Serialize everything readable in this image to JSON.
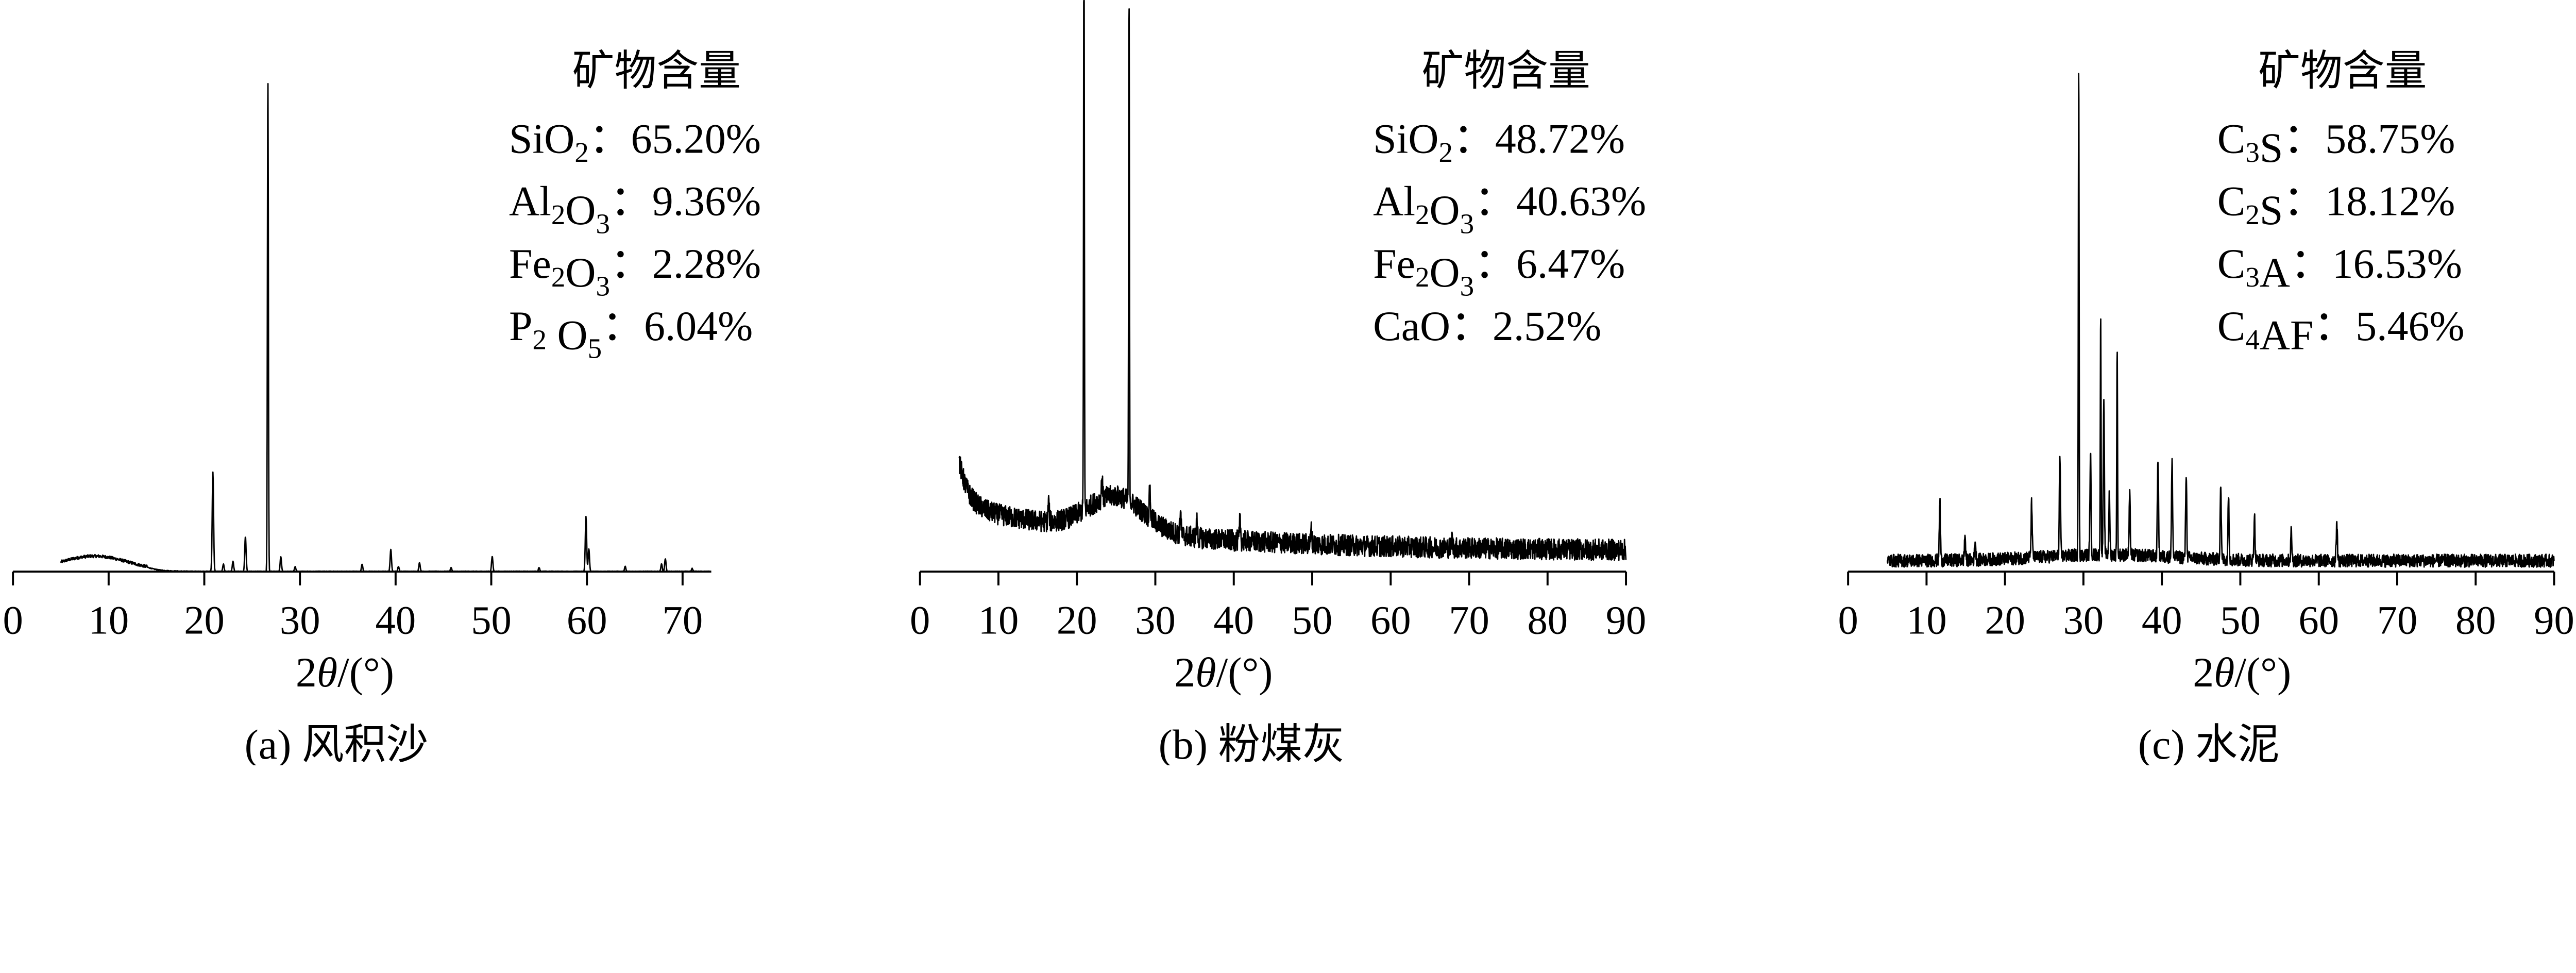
{
  "chart_data": [
    {
      "type": "line",
      "xlabel": "2θ/(°)",
      "caption": "(a)  风积沙",
      "xlim": [
        0,
        73
      ],
      "xticks": [
        0,
        10,
        20,
        30,
        40,
        50,
        60,
        70
      ],
      "x_range": [
        5,
        73
      ],
      "y_axis_shown": false,
      "grid": false,
      "annotation_title": "矿物含量",
      "annotations": [
        {
          "formula": "SiO2",
          "value": "65.20%"
        },
        {
          "formula": "Al2O3",
          "value": "9.36%"
        },
        {
          "formula": "Fe2O3",
          "value": "2.28%"
        },
        {
          "formula": "P2 O5",
          "value": "6.04%"
        }
      ],
      "peaks_relative_intensity": [
        [
          20.9,
          20
        ],
        [
          22.0,
          1.5
        ],
        [
          23.0,
          2
        ],
        [
          24.3,
          7
        ],
        [
          26.65,
          100
        ],
        [
          28.0,
          3
        ],
        [
          29.5,
          1
        ],
        [
          36.5,
          1.5
        ],
        [
          39.5,
          4.5
        ],
        [
          40.3,
          1
        ],
        [
          42.5,
          1.8
        ],
        [
          45.8,
          0.8
        ],
        [
          50.1,
          3
        ],
        [
          55,
          0.8
        ],
        [
          59.9,
          11
        ],
        [
          60.2,
          4.5
        ],
        [
          64,
          1
        ],
        [
          67.8,
          1.5
        ],
        [
          68.2,
          2.5
        ],
        [
          71,
          0.6
        ]
      ],
      "background": "amorphous hump 5–14°, ~3%"
    },
    {
      "type": "line",
      "xlabel": "2θ/(°)",
      "caption": "(b)  粉煤灰",
      "xlim": [
        0,
        90
      ],
      "xticks": [
        0,
        10,
        20,
        30,
        40,
        50,
        60,
        70,
        80,
        90
      ],
      "x_range": [
        5,
        90
      ],
      "y_axis_shown": false,
      "grid": false,
      "annotation_title": "矿物含量",
      "annotations": [
        {
          "formula": "SiO2",
          "value": "48.72%"
        },
        {
          "formula": "Al2O3",
          "value": "40.63%"
        },
        {
          "formula": "Fe2O3",
          "value": "6.47%"
        },
        {
          "formula": "CaO",
          "value": "2.52%"
        }
      ],
      "peaks_relative_intensity": [
        [
          20.9,
          120
        ],
        [
          26.65,
          100
        ],
        [
          16.4,
          4
        ],
        [
          23.2,
          4
        ],
        [
          29.3,
          6
        ],
        [
          33.2,
          5
        ],
        [
          35.3,
          3
        ],
        [
          40.8,
          4
        ],
        [
          49.9,
          3
        ],
        [
          67.8,
          2
        ]
      ],
      "background": "noisy, high at 5°, hump around 20–30°, decaying to 90°"
    },
    {
      "type": "line",
      "xlabel": "2θ/(°)",
      "caption": "(c)  水泥",
      "xlim": [
        0,
        90
      ],
      "xticks": [
        0,
        10,
        20,
        30,
        40,
        50,
        60,
        70,
        80,
        90
      ],
      "x_range": [
        5,
        90
      ],
      "y_axis_shown": false,
      "grid": false,
      "annotation_title": "矿物含量",
      "annotations": [
        {
          "formula": "C3S",
          "value": "58.75%"
        },
        {
          "formula": "C2S",
          "value": "18.12%"
        },
        {
          "formula": "C3A",
          "value": "16.53%"
        },
        {
          "formula": "C4AF",
          "value": "5.46%"
        }
      ],
      "peaks_relative_intensity": [
        [
          11.7,
          12
        ],
        [
          14.9,
          5
        ],
        [
          16.2,
          4
        ],
        [
          23.4,
          11
        ],
        [
          27.0,
          20
        ],
        [
          29.4,
          100
        ],
        [
          30.9,
          20
        ],
        [
          32.2,
          48
        ],
        [
          32.6,
          30
        ],
        [
          33.3,
          12
        ],
        [
          34.3,
          41
        ],
        [
          35.9,
          12
        ],
        [
          39.5,
          20
        ],
        [
          41.3,
          19
        ],
        [
          43.1,
          17
        ],
        [
          47.5,
          15
        ],
        [
          48.5,
          13
        ],
        [
          51.8,
          9
        ],
        [
          56.5,
          6
        ],
        [
          62.3,
          8
        ]
      ],
      "background": "low noise ~3%"
    }
  ]
}
